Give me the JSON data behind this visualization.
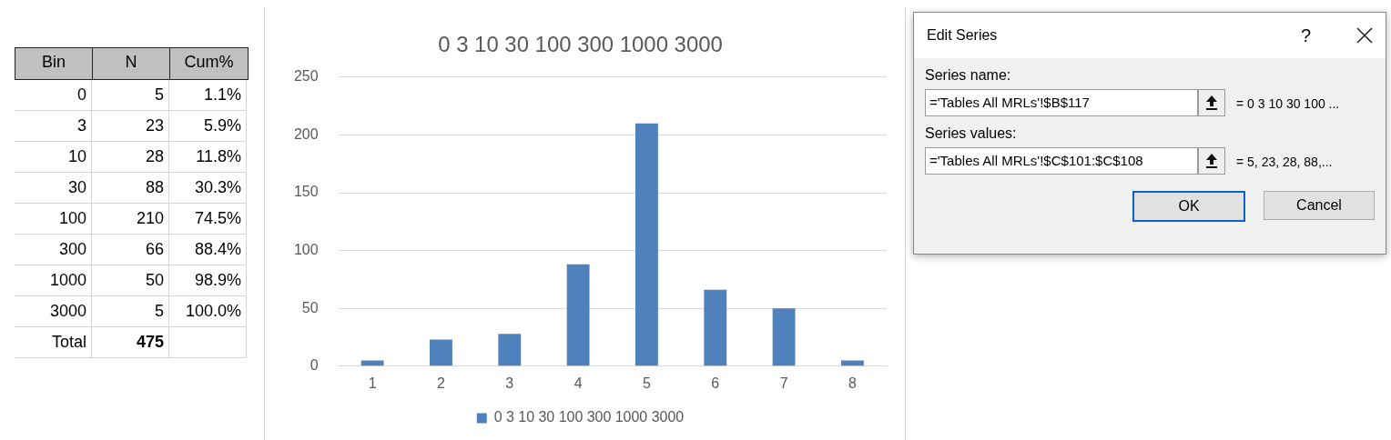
{
  "chart_data": {
    "type": "bar",
    "title": "0 3 10 30 100 300 1000 3000",
    "categories": [
      "1",
      "2",
      "3",
      "4",
      "5",
      "6",
      "7",
      "8"
    ],
    "series": [
      {
        "name": "0 3 10 30 100 300 1000 3000",
        "color": "#4f81bd",
        "values": [
          5,
          23,
          28,
          88,
          210,
          66,
          50,
          5
        ]
      }
    ],
    "ylim": [
      0,
      250
    ],
    "yticks": [
      0,
      50,
      100,
      150,
      200,
      250
    ],
    "grid": "y",
    "legend": "bottom",
    "annotations": [
      "Bin",
      "N",
      "Cum%",
      "0",
      "3",
      "10",
      "30",
      "100",
      "300",
      "1000",
      "3000",
      "5",
      "23",
      "28",
      "88",
      "210",
      "66",
      "50",
      "5",
      "1.1%",
      "5.9%",
      "11.8%",
      "30.3%",
      "74.5%",
      "88.4%",
      "98.9%",
      "100.0%",
      "Total",
      "475",
      "Edit Series",
      "?",
      "Series name:",
      "='Tables All MRLs'!$B$117",
      "= 0 3 10 30 100 ...",
      "Series values:",
      "='Tables All MRLs'!$C$101:$C$108",
      "= 5, 23, 28, 88,...",
      "OK",
      "Cancel"
    ]
  }
}
